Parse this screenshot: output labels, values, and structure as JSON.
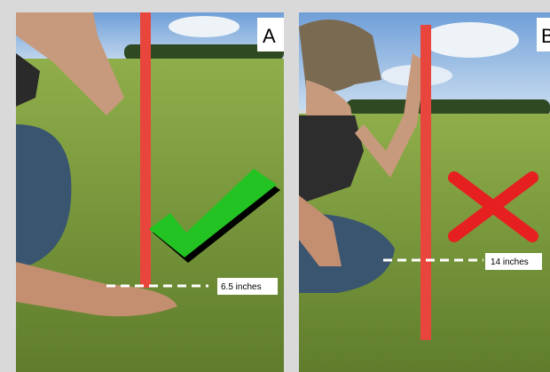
{
  "panels": [
    {
      "label": "A",
      "measurement": "6.5 inches"
    },
    {
      "label": "B",
      "measurement": "14 inches"
    }
  ]
}
